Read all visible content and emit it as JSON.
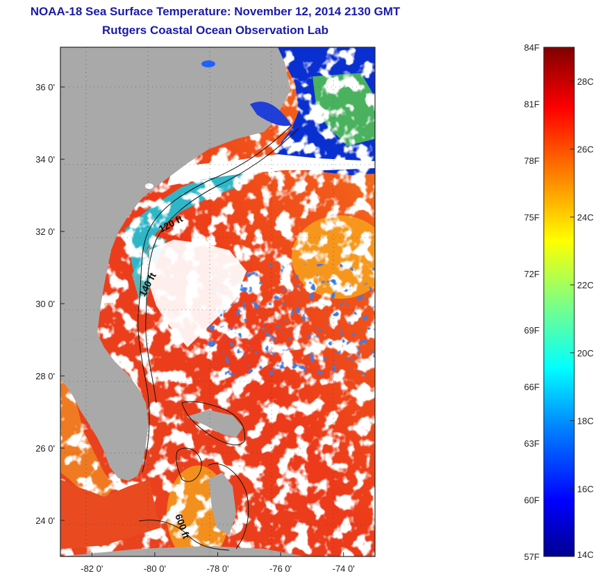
{
  "title": "NOAA-18 Sea Surface Temperature:  November 12, 2014 2130 GMT",
  "subtitle": "Rutgers Coastal Ocean Observation Lab",
  "map": {
    "lat_range": [
      23,
      37.1
    ],
    "lon_range": [
      -83,
      -73
    ],
    "lat_ticks": [
      {
        "value": 24,
        "label": "24 0'"
      },
      {
        "value": 26,
        "label": "26 0'"
      },
      {
        "value": 28,
        "label": "28 0'"
      },
      {
        "value": 30,
        "label": "30 0'"
      },
      {
        "value": 32,
        "label": "32 0'"
      },
      {
        "value": 34,
        "label": "34 0'"
      },
      {
        "value": 36,
        "label": "36 0'"
      }
    ],
    "lon_ticks": [
      {
        "value": -82,
        "label": "-82 0'"
      },
      {
        "value": -80,
        "label": "-80 0'"
      },
      {
        "value": -78,
        "label": "-78 0'"
      },
      {
        "value": -76,
        "label": "-76 0'"
      },
      {
        "value": -74,
        "label": "-74 0'"
      }
    ],
    "contour_labels": [
      {
        "text": "120 ft"
      },
      {
        "text": "140 ft"
      },
      {
        "text": "600 ft"
      }
    ],
    "colors": {
      "land": "#a9a9a9",
      "cloud": "#ffffff",
      "warm_ocean": "#e63a1e",
      "cold_ocean": "#0a2fd0"
    }
  },
  "colorbar": {
    "min_c": 14,
    "max_c": 29,
    "f_labels": [
      "84F",
      "81F",
      "78F",
      "75F",
      "72F",
      "69F",
      "66F",
      "63F",
      "60F",
      "57F"
    ],
    "c_labels": [
      "28C",
      "26C",
      "24C",
      "22C",
      "20C",
      "18C",
      "16C",
      "14C"
    ],
    "colormap": "jet"
  }
}
